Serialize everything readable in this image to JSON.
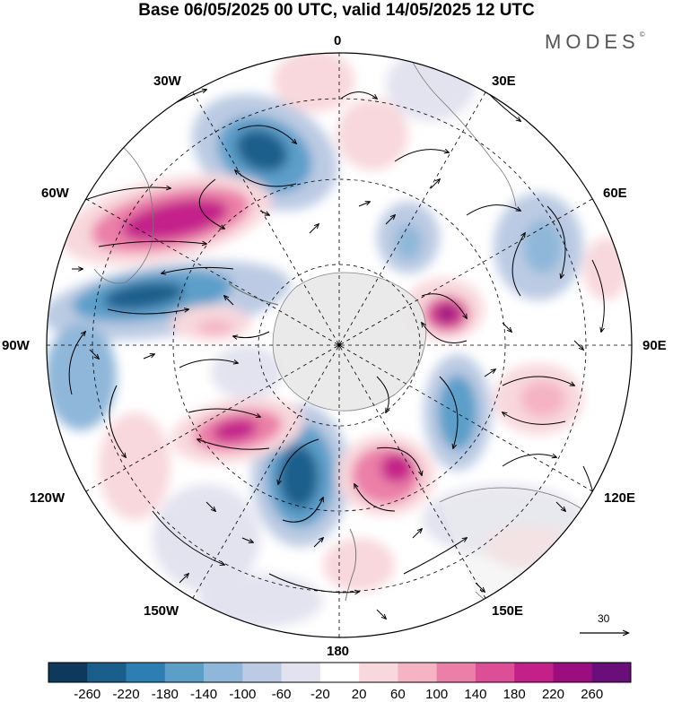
{
  "title": "Base 06/05/2025 00 UTC, valid 14/05/2025 12 UTC",
  "brand": "MODES",
  "brand_mark": "©",
  "longitude_labels": {
    "lon_0": "0",
    "lon_30e": "30E",
    "lon_60e": "60E",
    "lon_90e": "90E",
    "lon_120e": "120E",
    "lon_150e": "150E",
    "lon_180": "180",
    "lon_150w": "150W",
    "lon_120w": "120W",
    "lon_90w": "90W",
    "lon_60w": "60W",
    "lon_30w": "30W"
  },
  "reference_vector": {
    "value": "30"
  },
  "colorbar": {
    "labels": [
      "-260",
      "-220",
      "-180",
      "-140",
      "-100",
      "-60",
      "-20",
      "20",
      "60",
      "100",
      "140",
      "180",
      "220",
      "260"
    ],
    "colors": [
      "#0d3a5c",
      "#1a5e8c",
      "#2d7fb3",
      "#5b9fc9",
      "#8fb7d9",
      "#bccbe3",
      "#e3e3f0",
      "#ffffff",
      "#f8d8dc",
      "#f5b3c3",
      "#eb7fa8",
      "#dc4f96",
      "#c4208a",
      "#9c0e80",
      "#6a0f7a"
    ]
  },
  "map": {
    "projection": "south-polar-stereographic",
    "field": "geopotential-anomaly",
    "background_colors": {
      "land": "#e8e8e8",
      "coast": "#777777",
      "gridline": "#000000"
    }
  }
}
